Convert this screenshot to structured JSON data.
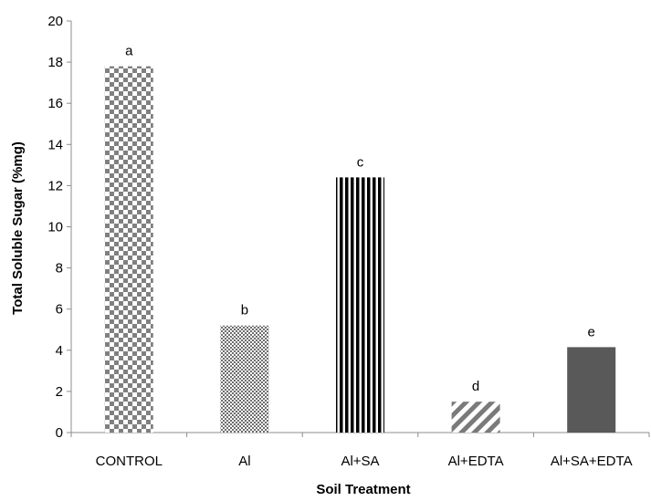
{
  "chart_data": {
    "type": "bar",
    "categories": [
      "CONTROL",
      "Al",
      "Al+SA",
      "Al+EDTA",
      "Al+SA+EDTA"
    ],
    "values": [
      17.8,
      5.2,
      12.4,
      1.5,
      4.15
    ],
    "bar_labels": [
      "a",
      "b",
      "c",
      "d",
      "e"
    ],
    "patterns": [
      "checker-large",
      "checker-small",
      "vertical-stripes",
      "diagonal-stripes",
      "solid"
    ],
    "title": "",
    "xlabel": "Soil Treatment",
    "ylabel": "Total Soluble Sugar (%mg)",
    "ylim": [
      0,
      20
    ],
    "yticks": [
      "0",
      "2",
      "4",
      "6",
      "8",
      "10",
      "12",
      "14",
      "16",
      "18",
      "20"
    ],
    "grid": false,
    "legend": "none",
    "colors": {
      "bar_dark": "#595959",
      "bar_mid": "#7f7f7f",
      "bar_black": "#000000",
      "axis": "#8c8c8c"
    }
  }
}
